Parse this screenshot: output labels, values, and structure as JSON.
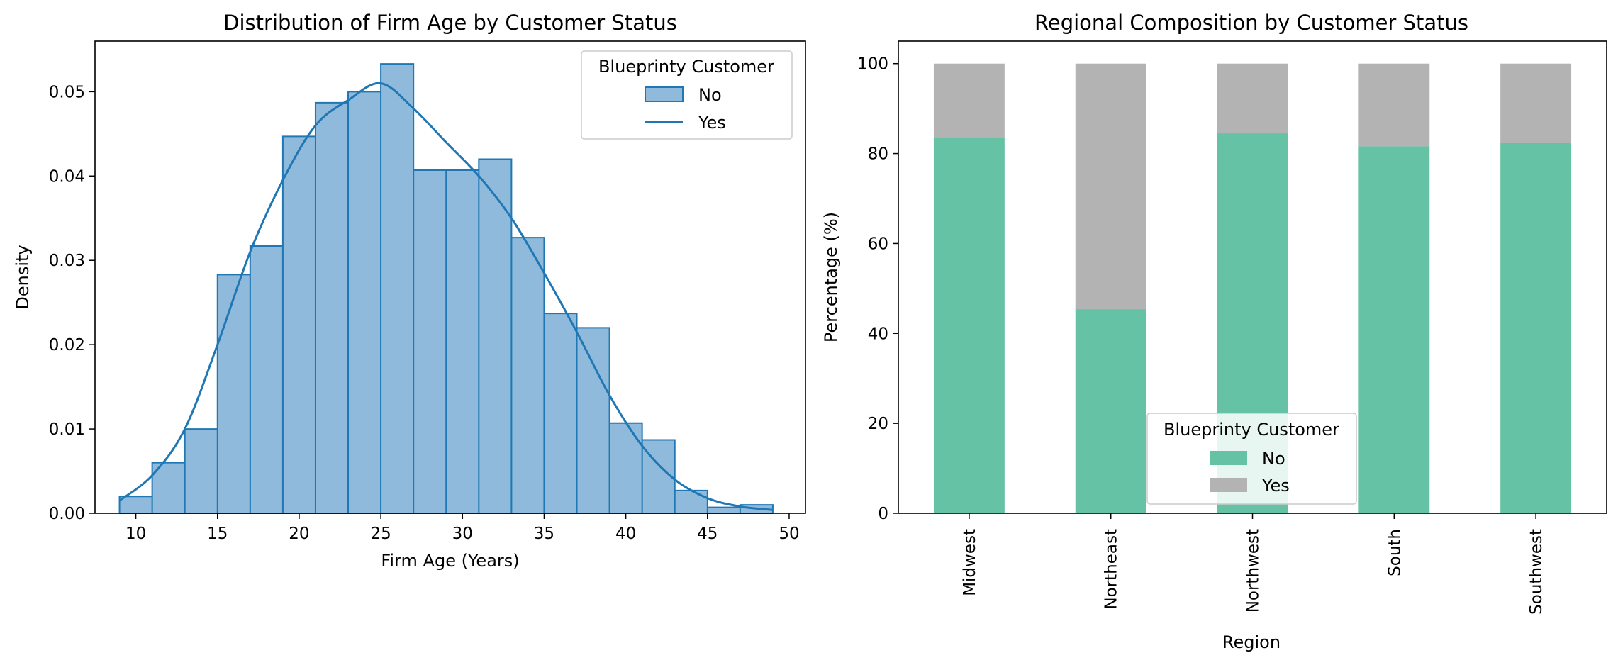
{
  "chart_data": [
    {
      "type": "histogram",
      "title": "Distribution of Firm Age by Customer Status",
      "xlabel": "Firm Age (Years)",
      "ylabel": "Density",
      "xlim": [
        7.5,
        51
      ],
      "ylim": [
        0,
        0.056
      ],
      "xticks": [
        10,
        15,
        20,
        25,
        30,
        35,
        40,
        45,
        50
      ],
      "yticks": [
        0.0,
        0.01,
        0.02,
        0.03,
        0.04,
        0.05
      ],
      "ytick_labels": [
        "0.00",
        "0.01",
        "0.02",
        "0.03",
        "0.04",
        "0.05"
      ],
      "bin_edges": [
        9,
        11,
        13,
        15,
        17,
        19,
        21,
        23,
        25,
        27,
        29,
        31,
        33,
        35,
        37,
        39,
        41,
        43,
        45,
        47,
        49
      ],
      "densities": [
        0.002,
        0.006,
        0.01,
        0.0283,
        0.0317,
        0.0447,
        0.0487,
        0.05,
        0.0533,
        0.0407,
        0.0407,
        0.042,
        0.0327,
        0.0237,
        0.022,
        0.0107,
        0.0087,
        0.0027,
        0.0007,
        0.001
      ],
      "kde": {
        "x": [
          9,
          11,
          13,
          15,
          17,
          19,
          21,
          23,
          25,
          27,
          29,
          31,
          33,
          35,
          37,
          39,
          41,
          43,
          45,
          47,
          49
        ],
        "y": [
          0.0015,
          0.0045,
          0.01,
          0.02,
          0.031,
          0.0395,
          0.046,
          0.049,
          0.051,
          0.048,
          0.044,
          0.04,
          0.035,
          0.0285,
          0.0215,
          0.014,
          0.008,
          0.004,
          0.0018,
          0.0008,
          0.0004
        ]
      },
      "legend": {
        "title": "Blueprinty Customer",
        "placement": "top-right",
        "entries": [
          "No",
          "Yes"
        ]
      },
      "colors": {
        "hist_fill": "#8fbadb",
        "hist_edge": "#1f77b4",
        "kde_line": "#1f77b4"
      }
    },
    {
      "type": "bar",
      "stacked": true,
      "title": "Regional Composition by Customer Status",
      "xlabel": "Region",
      "ylabel": "Percentage (%)",
      "ylim": [
        0,
        105
      ],
      "yticks": [
        0,
        20,
        40,
        60,
        80,
        100
      ],
      "categories": [
        "Midwest",
        "Northeast",
        "Northwest",
        "South",
        "Southwest"
      ],
      "series": [
        {
          "name": "No",
          "values": [
            83.4,
            45.4,
            84.5,
            81.6,
            82.4
          ],
          "color": "#66c2a5"
        },
        {
          "name": "Yes",
          "values": [
            16.6,
            54.6,
            15.5,
            18.4,
            17.6
          ],
          "color": "#b3b3b3"
        }
      ],
      "legend": {
        "title": "Blueprinty Customer",
        "placement": "lower-center",
        "entries": [
          "No",
          "Yes"
        ]
      }
    }
  ]
}
